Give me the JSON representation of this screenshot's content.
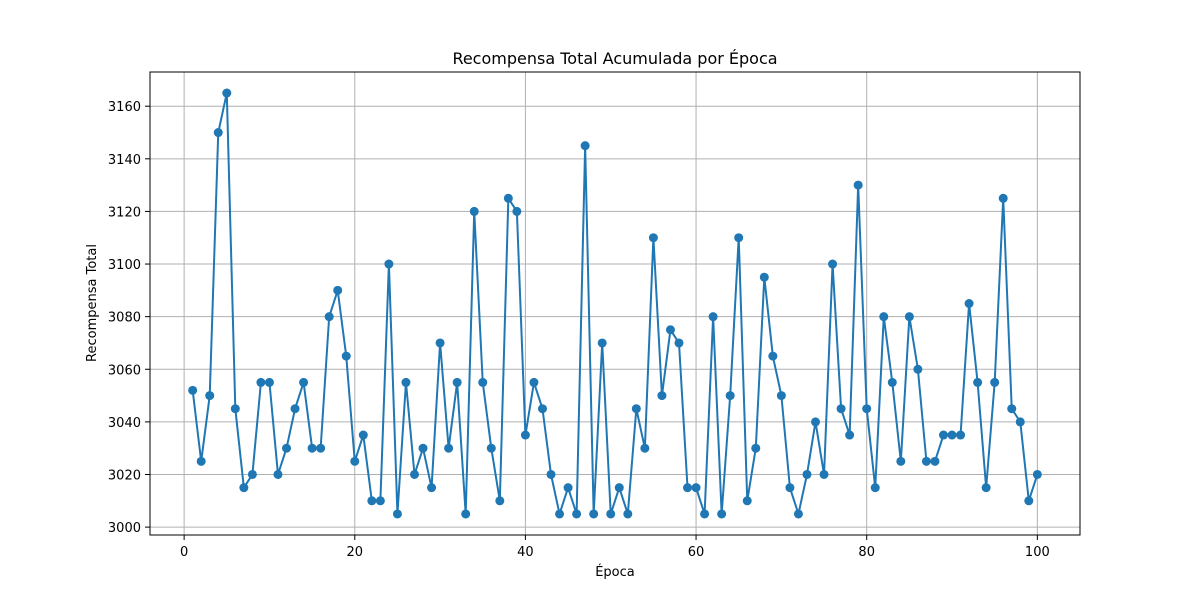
{
  "chart_data": {
    "type": "line",
    "title": "Recompensa Total Acumulada por Época",
    "xlabel": "Época",
    "ylabel": "Recompensa Total",
    "xlim": [
      -4,
      105
    ],
    "ylim": [
      2997,
      3173
    ],
    "xticks": [
      0,
      20,
      40,
      60,
      80,
      100
    ],
    "yticks": [
      3000,
      3020,
      3040,
      3060,
      3080,
      3100,
      3120,
      3140,
      3160
    ],
    "grid": true,
    "markers": true,
    "series": [
      {
        "color": "#1f77b4",
        "x": [
          1,
          2,
          3,
          4,
          5,
          6,
          7,
          8,
          9,
          10,
          11,
          12,
          13,
          14,
          15,
          16,
          17,
          18,
          19,
          20,
          21,
          22,
          23,
          24,
          25,
          26,
          27,
          28,
          29,
          30,
          31,
          32,
          33,
          34,
          35,
          36,
          37,
          38,
          39,
          40,
          41,
          42,
          43,
          44,
          45,
          46,
          47,
          48,
          49,
          50,
          51,
          52,
          53,
          54,
          55,
          56,
          57,
          58,
          59,
          60,
          61,
          62,
          63,
          64,
          65,
          66,
          67,
          68,
          69,
          70,
          71,
          72,
          73,
          74,
          75,
          76,
          77,
          78,
          79,
          80,
          81,
          82,
          83,
          84,
          85,
          86,
          87,
          88,
          89,
          90,
          91,
          92,
          93,
          94,
          95,
          96,
          97,
          98,
          99,
          100
        ],
        "values": [
          3052,
          3025,
          3050,
          3150,
          3165,
          3045,
          3015,
          3020,
          3055,
          3055,
          3020,
          3030,
          3045,
          3055,
          3030,
          3030,
          3080,
          3090,
          3065,
          3025,
          3035,
          3010,
          3010,
          3100,
          3005,
          3055,
          3020,
          3030,
          3015,
          3070,
          3030,
          3055,
          3005,
          3120,
          3055,
          3030,
          3010,
          3125,
          3120,
          3035,
          3055,
          3045,
          3020,
          3005,
          3015,
          3005,
          3145,
          3005,
          3070,
          3005,
          3015,
          3005,
          3045,
          3030,
          3110,
          3050,
          3075,
          3070,
          3015,
          3015,
          3005,
          3080,
          3005,
          3050,
          3110,
          3010,
          3030,
          3095,
          3065,
          3050,
          3015,
          3005,
          3020,
          3040,
          3020,
          3100,
          3045,
          3035,
          3130,
          3045,
          3015,
          3080,
          3055,
          3025,
          3080,
          3060,
          3025,
          3025,
          3035,
          3035,
          3035,
          3085,
          3055,
          3015,
          3055,
          3125,
          3045,
          3040,
          3010,
          3020
        ]
      }
    ]
  }
}
